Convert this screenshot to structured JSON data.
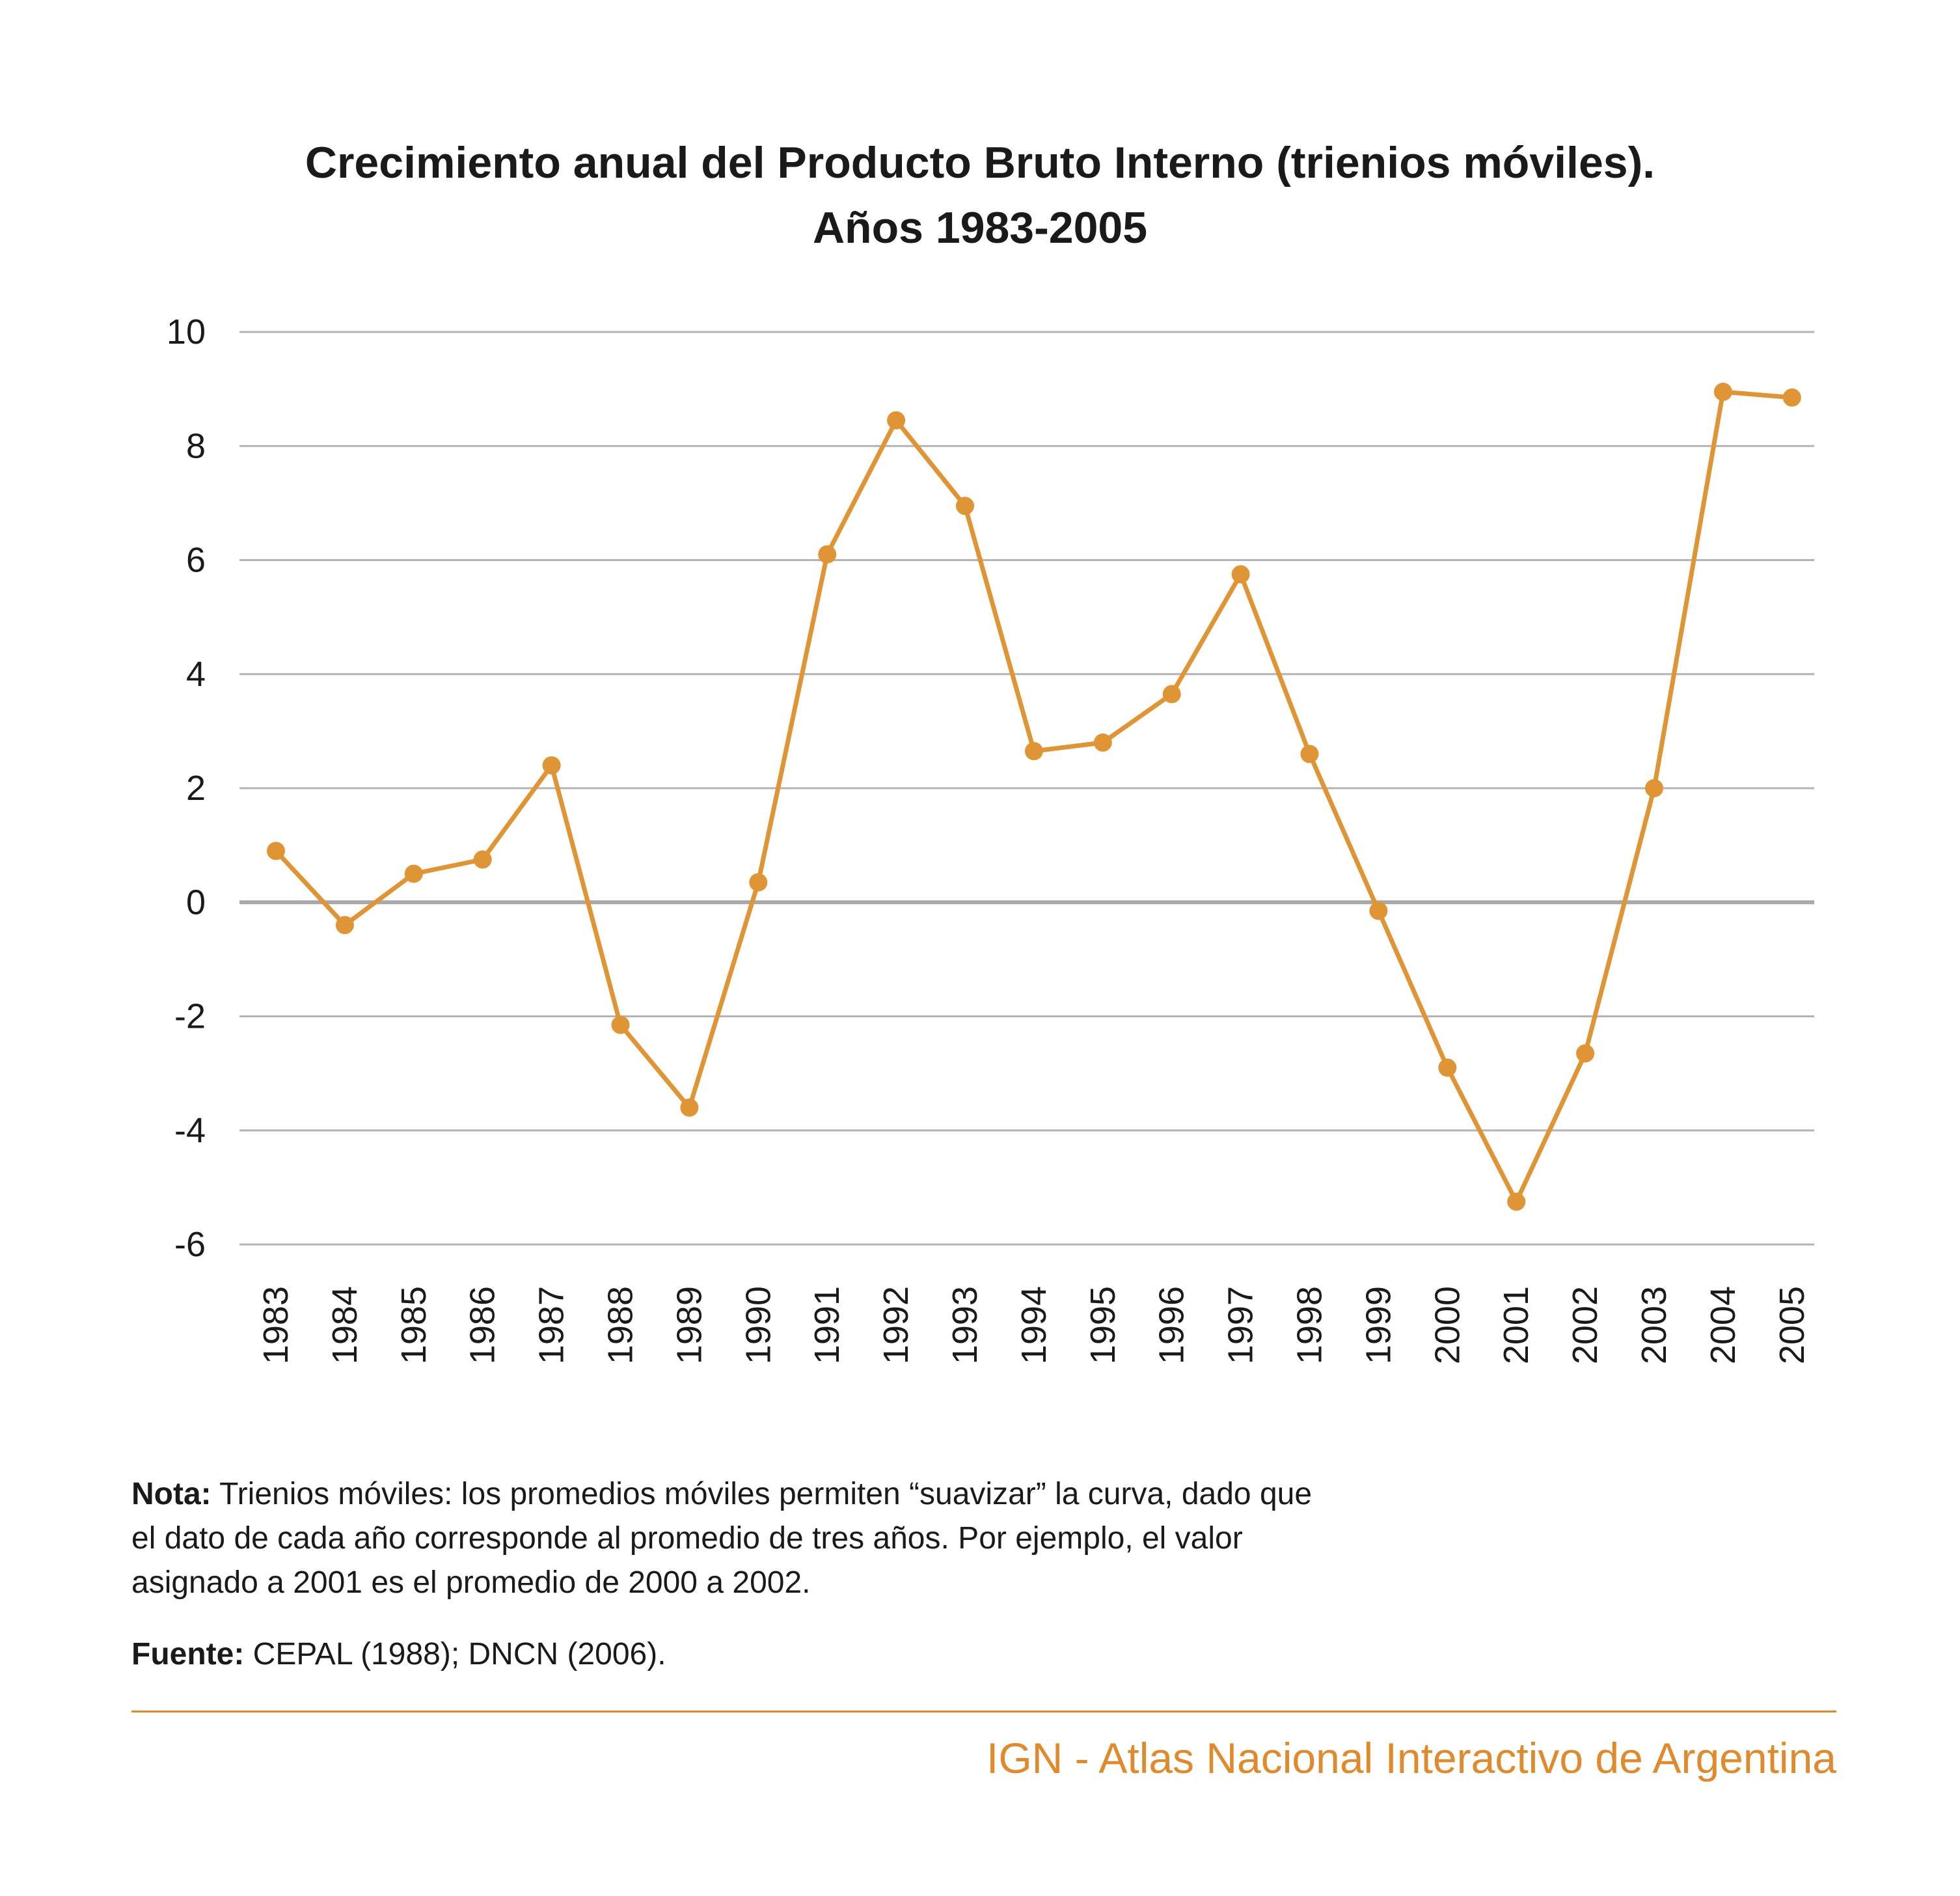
{
  "title": {
    "line1": "Crecimiento anual del Producto Bruto Interno (trienios móviles).",
    "line2": "Años 1983-2005"
  },
  "chart_data": {
    "type": "line",
    "title": "Crecimiento anual del Producto Bruto Interno (trienios móviles). Años 1983-2005",
    "xlabel": "",
    "ylabel": "",
    "ylim": [
      -6,
      10
    ],
    "yticks": [
      10,
      8,
      6,
      4,
      2,
      0,
      -2,
      -4,
      -6
    ],
    "grid": true,
    "categories": [
      "1983",
      "1984",
      "1985",
      "1986",
      "1987",
      "1988",
      "1989",
      "1990",
      "1991",
      "1992",
      "1993",
      "1994",
      "1995",
      "1996",
      "1997",
      "1998",
      "1999",
      "2000",
      "2001",
      "2002",
      "2003",
      "2004",
      "2005"
    ],
    "series": [
      {
        "values": [
          0.9,
          -0.4,
          0.5,
          0.75,
          2.4,
          -2.15,
          -3.6,
          0.35,
          6.1,
          8.45,
          6.95,
          2.65,
          2.8,
          3.65,
          5.75,
          2.6,
          -0.15,
          -2.9,
          -5.25,
          -2.65,
          2.0,
          8.95,
          8.85
        ]
      }
    ],
    "colors": {
      "line": "#df9536",
      "grid": "#b3b3b3",
      "zero_line": "#a8a8a8"
    }
  },
  "note": {
    "label": "Nota:",
    "line1": "Trienios móviles: los promedios móviles permiten “suavizar” la curva, dado que",
    "line2": "el dato de cada año corresponde al promedio de tres años. Por ejemplo, el valor",
    "line3": "asignado a 2001 es el promedio de 2000 a 2002."
  },
  "source": {
    "label": "Fuente:",
    "text": "CEPAL (1988); DNCN (2006)."
  },
  "credit": "IGN - Atlas Nacional Interactivo de Argentina"
}
